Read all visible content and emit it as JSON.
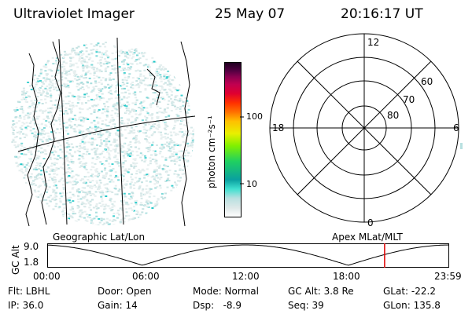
{
  "header": {
    "instrument": "Ultraviolet Imager",
    "date": "25 May 07",
    "time": "20:16:17 UT"
  },
  "colorbar": {
    "unit_label": "photon cm⁻²s⁻¹",
    "ticks": [
      "100",
      "10"
    ]
  },
  "polar_plot": {
    "mlt_labels": [
      "12",
      "18",
      "6",
      "0"
    ],
    "lat_labels": [
      "60",
      "70",
      "80"
    ]
  },
  "coords": {
    "left_label": "Geographic Lat/Lon",
    "right_label": "Apex MLat/MLT"
  },
  "altitude_plot": {
    "ylabel": "GC Alt",
    "yticks": [
      "9.0",
      "1.8"
    ],
    "xticks": [
      "00:00",
      "06:00",
      "12:00",
      "18:00",
      "23:59"
    ],
    "current_time_fraction": 0.84
  },
  "status": {
    "flt": "Flt: LBHL",
    "ip": "IP: 36.0",
    "door": "Door: Open",
    "gain": "Gain: 14",
    "mode": "Mode: Normal",
    "dsp": "Dsp:   -8.9",
    "gc_alt": "GC Alt: 3.8 Re",
    "seq": "Seq: 39",
    "glat": "GLat: -22.2",
    "glon": "GLon: 135.8"
  }
}
